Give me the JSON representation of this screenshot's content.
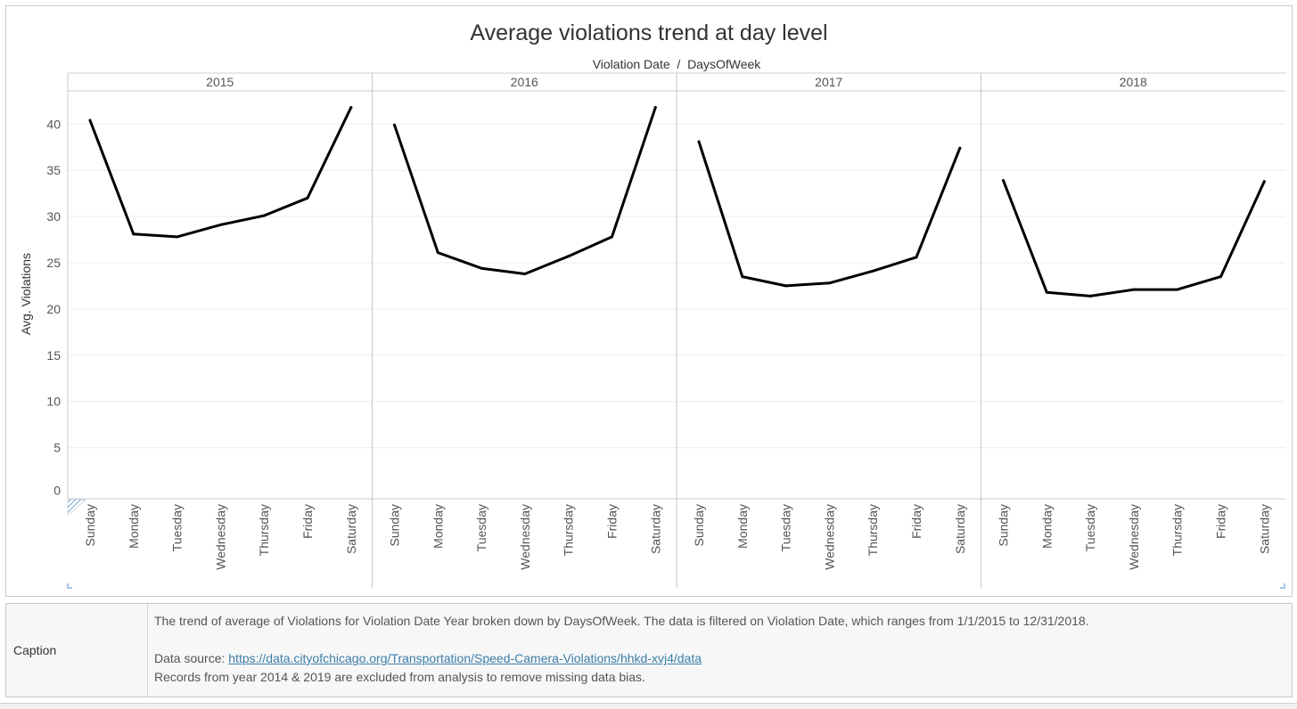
{
  "chart_data": {
    "type": "line",
    "title": "Average violations trend at day level",
    "column_header": "Violation Date  /  DaysOfWeek",
    "ylabel": "Avg. Violations",
    "ylim": [
      0,
      43
    ],
    "y_ticks": [
      0,
      5,
      10,
      15,
      20,
      25,
      30,
      35,
      40
    ],
    "grid": true,
    "categories": [
      "Sunday",
      "Monday",
      "Tuesday",
      "Wednesday",
      "Thursday",
      "Friday",
      "Saturday"
    ],
    "panels": [
      {
        "year": "2015",
        "values": [
          40.4,
          28.1,
          27.8,
          29.1,
          30.1,
          32.0,
          41.8
        ]
      },
      {
        "year": "2016",
        "values": [
          39.9,
          26.1,
          24.4,
          23.8,
          25.7,
          27.8,
          41.8
        ]
      },
      {
        "year": "2017",
        "values": [
          38.1,
          23.5,
          22.5,
          22.8,
          24.1,
          25.6,
          37.4
        ]
      },
      {
        "year": "2018",
        "values": [
          33.9,
          21.8,
          21.4,
          22.1,
          22.1,
          23.5,
          33.8
        ]
      }
    ],
    "line_color": "#000000"
  },
  "caption": {
    "label": "Caption",
    "line1": "The trend of average of Violations for Violation Date Year broken down by DaysOfWeek. The data is filtered on Violation Date, which ranges from 1/1/2015 to 12/31/2018.",
    "source_prefix": "Data source: ",
    "source_link": "https://data.cityofchicago.org/Transportation/Speed-Camera-Violations/hhkd-xvj4/data",
    "line3": "Records from year 2014 & 2019 are excluded from analysis to remove missing data bias."
  }
}
